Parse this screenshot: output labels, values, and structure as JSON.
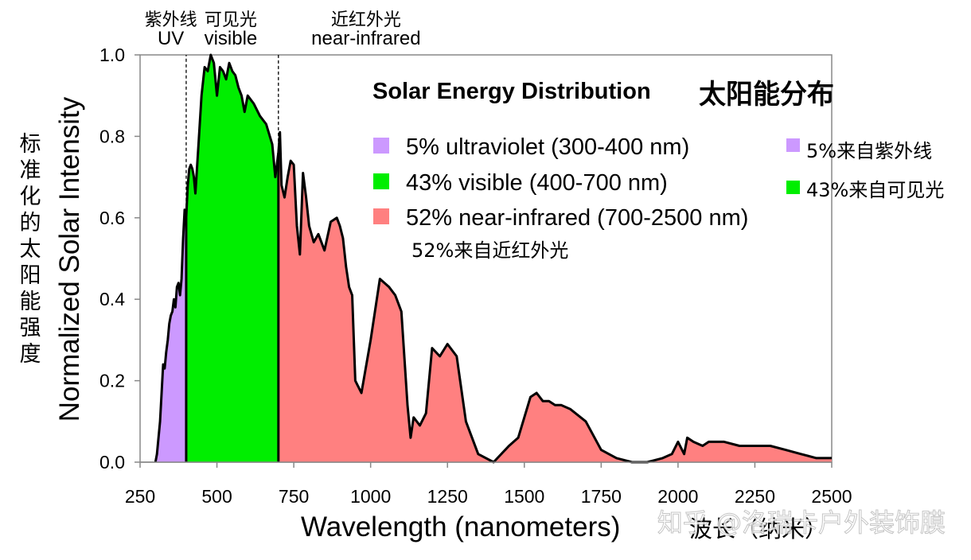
{
  "chart_data": {
    "type": "area",
    "title": "Solar Energy Distribution",
    "title_cn": "太阳能分布",
    "xlabel": "Wavelength (nanometers)",
    "xlabel_cn": "波长（纳米）",
    "ylabel": "Normalized Solar Intensity",
    "ylabel_cn": "标准化的太阳能强度",
    "xlim": [
      250,
      2500
    ],
    "ylim": [
      0,
      1.0
    ],
    "xticks": [
      250,
      500,
      750,
      1000,
      1250,
      1500,
      1750,
      2000,
      2250,
      2500
    ],
    "yticks": [
      "0.0",
      "0.2",
      "0.4",
      "0.6",
      "0.8",
      "1.0"
    ],
    "region_boundaries": [
      400,
      700
    ],
    "regions": [
      {
        "cn": "紫外线",
        "en": "UV",
        "center": 350
      },
      {
        "cn": "可见光",
        "en": "visible",
        "center": 545
      },
      {
        "cn": "近红外光",
        "en": "near-infrared",
        "center": 985
      }
    ],
    "legend": [
      {
        "label": "5% ultraviolet (300-400 nm)",
        "label_cn": "5%来自紫外线",
        "color": "#cc99ff"
      },
      {
        "label": "43% visible (400-700 nm)",
        "label_cn": "43%来自可见光",
        "color": "#00ee00"
      },
      {
        "label": "52% near-infrared (700-2500 nm)",
        "label_cn": "52%来自近红外光",
        "color": "#ff8080"
      }
    ],
    "series": [
      {
        "name": "ultraviolet",
        "color": "#cc99ff",
        "x": [
          300,
          305,
          315,
          325,
          330,
          335,
          340,
          345,
          350,
          355,
          360,
          365,
          370,
          375,
          380,
          385,
          390,
          395,
          400
        ],
        "y": [
          0.0,
          0.02,
          0.1,
          0.24,
          0.23,
          0.27,
          0.3,
          0.34,
          0.36,
          0.37,
          0.4,
          0.38,
          0.43,
          0.44,
          0.41,
          0.45,
          0.55,
          0.62,
          0.6
        ]
      },
      {
        "name": "visible",
        "color": "#00ee00",
        "x": [
          400,
          405,
          410,
          415,
          420,
          425,
          430,
          440,
          450,
          460,
          470,
          475,
          480,
          490,
          500,
          510,
          520,
          530,
          540,
          550,
          560,
          570,
          580,
          590,
          600,
          620,
          640,
          660,
          680,
          690,
          700
        ],
        "y": [
          0.6,
          0.68,
          0.72,
          0.73,
          0.72,
          0.7,
          0.66,
          0.78,
          0.9,
          0.97,
          0.96,
          0.98,
          1.0,
          0.98,
          0.9,
          0.97,
          0.96,
          0.94,
          0.98,
          0.96,
          0.95,
          0.92,
          0.9,
          0.86,
          0.9,
          0.88,
          0.85,
          0.83,
          0.78,
          0.7,
          0.76
        ]
      },
      {
        "name": "near-infrared",
        "color": "#ff8080",
        "x": [
          700,
          705,
          710,
          720,
          730,
          740,
          750,
          760,
          770,
          780,
          790,
          800,
          815,
          830,
          850,
          870,
          890,
          900,
          910,
          920,
          930,
          940,
          950,
          970,
          1000,
          1030,
          1060,
          1080,
          1100,
          1120,
          1130,
          1140,
          1160,
          1180,
          1200,
          1225,
          1250,
          1280,
          1310,
          1350,
          1400,
          1450,
          1480,
          1500,
          1520,
          1540,
          1560,
          1580,
          1600,
          1620,
          1650,
          1700,
          1750,
          1800,
          1850,
          1900,
          1950,
          1980,
          2000,
          2020,
          2030,
          2050,
          2080,
          2100,
          2150,
          2200,
          2300,
          2350,
          2400,
          2450,
          2500
        ],
        "y": [
          0.76,
          0.81,
          0.68,
          0.65,
          0.7,
          0.74,
          0.73,
          0.58,
          0.51,
          0.71,
          0.65,
          0.58,
          0.54,
          0.56,
          0.52,
          0.59,
          0.6,
          0.58,
          0.55,
          0.48,
          0.43,
          0.41,
          0.2,
          0.17,
          0.3,
          0.45,
          0.43,
          0.41,
          0.37,
          0.14,
          0.06,
          0.11,
          0.09,
          0.12,
          0.28,
          0.26,
          0.29,
          0.26,
          0.1,
          0.02,
          0.0,
          0.04,
          0.06,
          0.11,
          0.16,
          0.17,
          0.15,
          0.15,
          0.14,
          0.14,
          0.13,
          0.1,
          0.03,
          0.01,
          0.0,
          0.0,
          0.01,
          0.02,
          0.05,
          0.02,
          0.06,
          0.05,
          0.04,
          0.05,
          0.05,
          0.04,
          0.04,
          0.03,
          0.02,
          0.01,
          0.01
        ]
      }
    ]
  },
  "watermark": "知乎 @洛瑞卡户外装饰膜"
}
